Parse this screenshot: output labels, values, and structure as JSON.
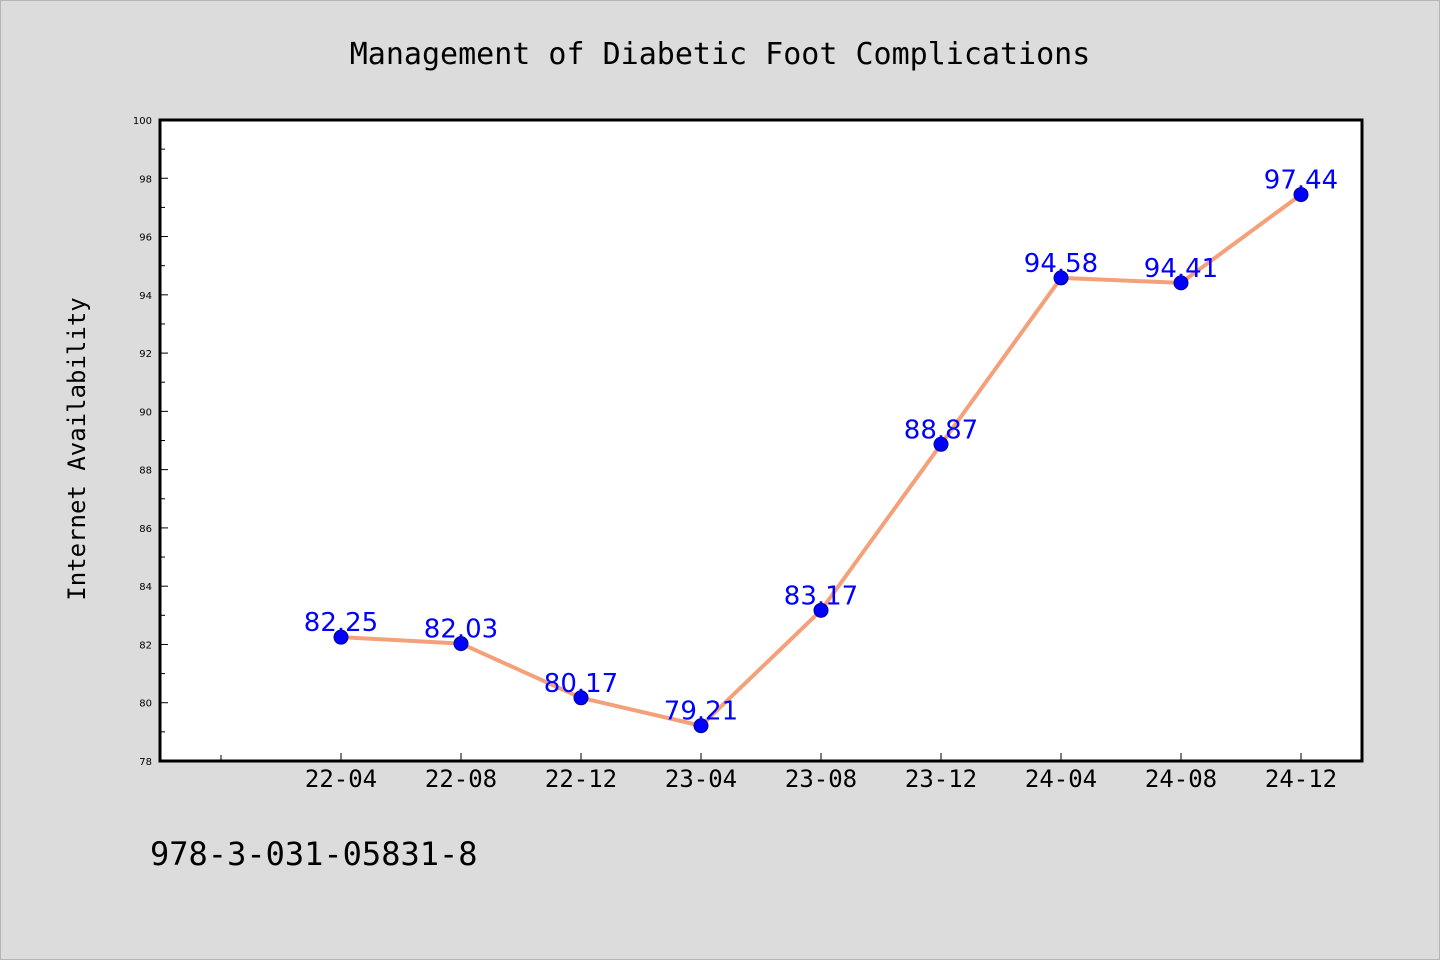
{
  "chart_data": {
    "type": "line",
    "title": "Management of Diabetic Foot Complications",
    "xlabel": "",
    "ylabel": "Internet Availability",
    "categories": [
      "22-04",
      "22-08",
      "22-12",
      "23-04",
      "23-08",
      "23-12",
      "24-04",
      "24-08",
      "24-12"
    ],
    "series": [
      {
        "values": [
          82.25,
          82.03,
          80.17,
          79.21,
          83.17,
          88.87,
          94.58,
          94.41,
          97.44
        ],
        "data_labels": [
          "82.25",
          "82.03",
          "80.17",
          "79.21",
          "83.17",
          "88.87",
          "94.58",
          "94.41",
          "97.44"
        ],
        "line_color": "#f4a07a",
        "marker_color": "#0000ff"
      }
    ],
    "yticks": [
      "78",
      "80",
      "82",
      "84",
      "86",
      "88",
      "90",
      "92",
      "94",
      "96",
      "98",
      "100"
    ],
    "ylim": [
      78,
      100
    ],
    "grid": false,
    "legend": "none"
  },
  "footnote": "978-3-031-05831-8",
  "colors": {
    "background": "#dcdcdc",
    "plot_background": "#ffffff",
    "axes": "#000000",
    "label_color": "#0000ff"
  }
}
